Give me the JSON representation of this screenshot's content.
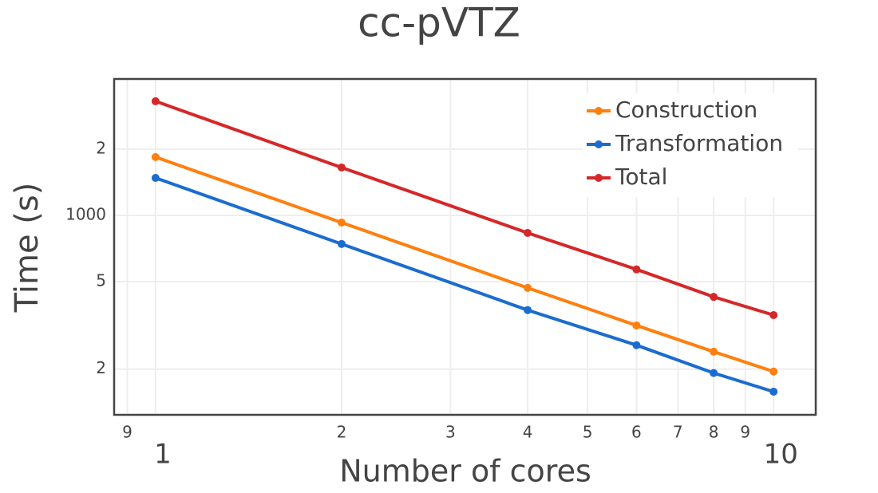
{
  "chart_data": {
    "type": "line",
    "title": "cc-pVTZ",
    "x_label": "Number of cores",
    "y_label": "Time (s)",
    "x_log": true,
    "y_log": true,
    "grid": true,
    "legend": "top-right",
    "x": [
      1,
      2,
      4,
      6,
      8,
      10
    ],
    "series": [
      {
        "name": "Construction",
        "color": "#ff7f0e",
        "values": [
          1840,
          927,
          468,
          316,
          240,
          195
        ]
      },
      {
        "name": "Transformation",
        "color": "#1b6ccf",
        "values": [
          1480,
          741,
          371,
          257,
          192,
          158
        ]
      },
      {
        "name": "Total",
        "color": "#d62728",
        "values": [
          3300,
          1650,
          832,
          568,
          426,
          352
        ]
      }
    ],
    "xlim": [
      0.857,
      11.7
    ],
    "xticks": [
      {
        "value": 0.9,
        "label": "9"
      },
      1,
      2,
      3,
      4,
      5,
      6,
      7,
      8,
      9,
      10
    ],
    "ylim": [
      124,
      4166
    ],
    "yticks": [
      {
        "value": 2000,
        "label": "2"
      },
      1000,
      {
        "value": 500,
        "label": "5"
      },
      {
        "value": 200,
        "label": "2"
      }
    ]
  }
}
